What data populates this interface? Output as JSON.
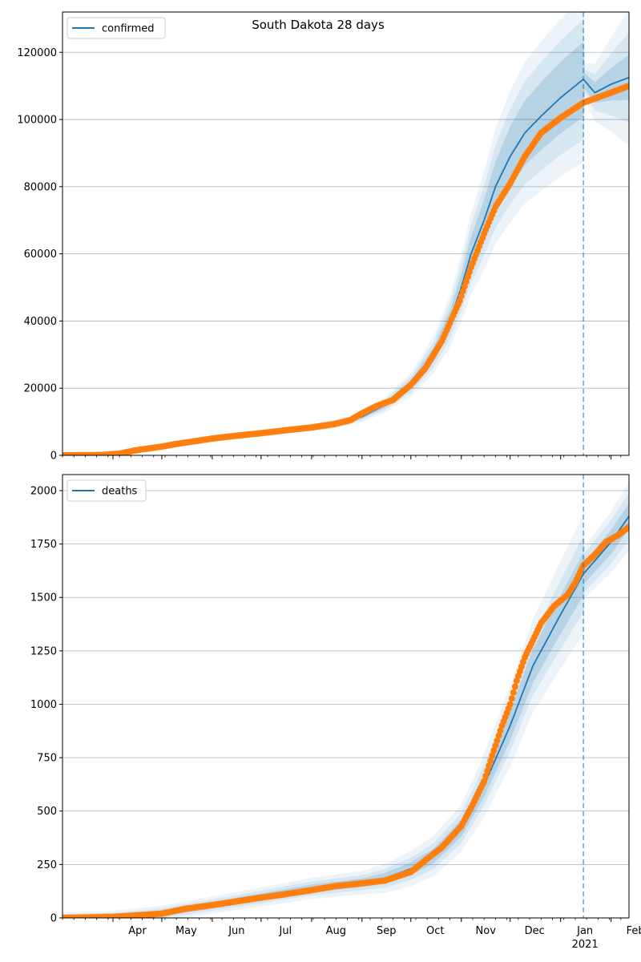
{
  "title": "South Dakota 28 days",
  "colors": {
    "model": "#1f77b4",
    "observed": "#ff7f0e",
    "band": "#1f77b4",
    "grid": "#b0b0b0",
    "forecast_line": "#1f77b4"
  },
  "x_axis": {
    "range": [
      "2020-03-01",
      "2021-02-12"
    ],
    "tick_labels": [
      {
        "date": "2020-04-01",
        "label": "Apr"
      },
      {
        "date": "2020-05-01",
        "label": "May"
      },
      {
        "date": "2020-06-01",
        "label": "Jun"
      },
      {
        "date": "2020-07-01",
        "label": "Jul"
      },
      {
        "date": "2020-08-01",
        "label": "Aug"
      },
      {
        "date": "2020-09-01",
        "label": "Sep"
      },
      {
        "date": "2020-10-01",
        "label": "Oct"
      },
      {
        "date": "2020-11-01",
        "label": "Nov"
      },
      {
        "date": "2020-12-01",
        "label": "Dec"
      },
      {
        "date": "2021-01-01",
        "label": "Jan"
      },
      {
        "date": "2021-02-01",
        "label": "Feb"
      }
    ],
    "year_label": {
      "date": "2021-01-01",
      "label": "2021"
    }
  },
  "chart_data": [
    {
      "type": "line",
      "name": "confirmed",
      "legend": {
        "label": "confirmed",
        "placement": "top-left"
      },
      "ylim": [
        0,
        132000
      ],
      "yticks": [
        0,
        20000,
        40000,
        60000,
        80000,
        100000,
        120000
      ],
      "ytick_labels": [
        "0",
        "20000",
        "40000",
        "60000",
        "80000",
        "100000",
        "120000"
      ],
      "grid": "y",
      "forecast_date": "2021-01-15",
      "model_points": [
        [
          "2020-03-01",
          0
        ],
        [
          "2020-03-20",
          300
        ],
        [
          "2020-04-01",
          800
        ],
        [
          "2020-04-15",
          1600
        ],
        [
          "2020-05-01",
          2800
        ],
        [
          "2020-05-15",
          3900
        ],
        [
          "2020-06-01",
          5000
        ],
        [
          "2020-06-15",
          5800
        ],
        [
          "2020-07-01",
          6600
        ],
        [
          "2020-07-15",
          7400
        ],
        [
          "2020-08-01",
          8300
        ],
        [
          "2020-08-15",
          9300
        ],
        [
          "2020-09-01",
          11500
        ],
        [
          "2020-09-15",
          15000
        ],
        [
          "2020-10-01",
          21000
        ],
        [
          "2020-10-15",
          30000
        ],
        [
          "2020-10-25",
          40000
        ],
        [
          "2020-11-01",
          50000
        ],
        [
          "2020-11-07",
          60000
        ],
        [
          "2020-11-15",
          70000
        ],
        [
          "2020-11-22",
          80000
        ],
        [
          "2020-12-01",
          89000
        ],
        [
          "2020-12-10",
          96000
        ],
        [
          "2020-12-20",
          101000
        ],
        [
          "2021-01-01",
          106500
        ],
        [
          "2021-01-15",
          112000
        ],
        [
          "2021-01-22",
          108000
        ],
        [
          "2021-02-01",
          110500
        ],
        [
          "2021-02-12",
          112500
        ]
      ],
      "band_widths": [
        [
          [
            "2020-03-01",
            0.02
          ],
          [
            "2020-09-01",
            0.05
          ],
          [
            "2020-11-01",
            0.08
          ],
          [
            "2020-12-01",
            0.1
          ],
          [
            "2021-01-15",
            0.1
          ],
          [
            "2021-01-16",
            0.02
          ],
          [
            "2021-02-12",
            0.06
          ]
        ],
        [
          [
            "2020-03-01",
            0.04
          ],
          [
            "2020-09-01",
            0.09
          ],
          [
            "2020-11-01",
            0.14
          ],
          [
            "2020-12-01",
            0.16
          ],
          [
            "2021-01-15",
            0.16
          ],
          [
            "2021-01-16",
            0.03
          ],
          [
            "2021-02-12",
            0.12
          ]
        ],
        [
          [
            "2020-03-01",
            0.07
          ],
          [
            "2020-09-01",
            0.14
          ],
          [
            "2020-11-01",
            0.2
          ],
          [
            "2020-12-01",
            0.22
          ],
          [
            "2021-01-15",
            0.22
          ],
          [
            "2021-01-16",
            0.05
          ],
          [
            "2021-02-12",
            0.18
          ]
        ]
      ],
      "observed_points": [
        [
          "2020-03-01",
          0
        ],
        [
          "2020-03-25",
          100
        ],
        [
          "2020-04-05",
          500
        ],
        [
          "2020-04-15",
          1500
        ],
        [
          "2020-04-25",
          2200
        ],
        [
          "2020-05-01",
          2600
        ],
        [
          "2020-05-10",
          3400
        ],
        [
          "2020-05-20",
          4100
        ],
        [
          "2020-06-01",
          5000
        ],
        [
          "2020-06-15",
          5800
        ],
        [
          "2020-07-01",
          6600
        ],
        [
          "2020-07-15",
          7400
        ],
        [
          "2020-08-01",
          8300
        ],
        [
          "2020-08-15",
          9300
        ],
        [
          "2020-08-25",
          10500
        ],
        [
          "2020-09-01",
          12500
        ],
        [
          "2020-09-10",
          14700
        ],
        [
          "2020-09-20",
          16500
        ],
        [
          "2020-10-01",
          21000
        ],
        [
          "2020-10-10",
          26000
        ],
        [
          "2020-10-20",
          34000
        ],
        [
          "2020-10-31",
          46000
        ],
        [
          "2020-11-07",
          56000
        ],
        [
          "2020-11-15",
          66000
        ],
        [
          "2020-11-22",
          74000
        ],
        [
          "2020-12-01",
          81000
        ],
        [
          "2020-12-10",
          89000
        ],
        [
          "2020-12-20",
          96000
        ],
        [
          "2021-01-01",
          100500
        ],
        [
          "2021-01-15",
          105000
        ],
        [
          "2021-02-01",
          108000
        ],
        [
          "2021-02-12",
          110000
        ]
      ]
    },
    {
      "type": "line",
      "name": "deaths",
      "legend": {
        "label": "deaths",
        "placement": "top-left"
      },
      "ylim": [
        0,
        2075
      ],
      "yticks": [
        0,
        250,
        500,
        750,
        1000,
        1250,
        1500,
        1750,
        2000
      ],
      "ytick_labels": [
        "0",
        "250",
        "500",
        "750",
        "1000",
        "1250",
        "1500",
        "1750",
        "2000"
      ],
      "grid": "y",
      "forecast_date": "2021-01-15",
      "model_points": [
        [
          "2020-03-01",
          0
        ],
        [
          "2020-04-01",
          3
        ],
        [
          "2020-05-01",
          22
        ],
        [
          "2020-06-01",
          60
        ],
        [
          "2020-07-01",
          98
        ],
        [
          "2020-08-01",
          138
        ],
        [
          "2020-09-01",
          165
        ],
        [
          "2020-09-15",
          185
        ],
        [
          "2020-10-01",
          230
        ],
        [
          "2020-10-15",
          290
        ],
        [
          "2020-11-01",
          420
        ],
        [
          "2020-11-15",
          620
        ],
        [
          "2020-12-01",
          900
        ],
        [
          "2020-12-15",
          1180
        ],
        [
          "2021-01-01",
          1420
        ],
        [
          "2021-01-15",
          1610
        ],
        [
          "2021-02-01",
          1760
        ],
        [
          "2021-02-12",
          1880
        ]
      ],
      "band_widths": [
        [
          [
            "2020-03-01",
            10
          ],
          [
            "2020-09-01",
            20
          ],
          [
            "2020-11-01",
            40
          ],
          [
            "2020-12-01",
            70
          ],
          [
            "2021-01-15",
            100
          ],
          [
            "2021-01-16",
            50
          ],
          [
            "2021-02-12",
            60
          ]
        ],
        [
          [
            "2020-03-01",
            18
          ],
          [
            "2020-09-01",
            35
          ],
          [
            "2020-11-01",
            70
          ],
          [
            "2020-12-01",
            120
          ],
          [
            "2021-01-15",
            180
          ],
          [
            "2021-01-16",
            90
          ],
          [
            "2021-02-12",
            110
          ]
        ],
        [
          [
            "2020-03-01",
            25
          ],
          [
            "2020-09-01",
            55
          ],
          [
            "2020-11-01",
            110
          ],
          [
            "2020-12-01",
            190
          ],
          [
            "2021-01-15",
            280
          ],
          [
            "2021-01-16",
            120
          ],
          [
            "2021-02-12",
            160
          ]
        ]
      ],
      "observed_points": [
        [
          "2020-03-01",
          0
        ],
        [
          "2020-04-01",
          5
        ],
        [
          "2020-04-10",
          9
        ],
        [
          "2020-05-01",
          20
        ],
        [
          "2020-05-15",
          42
        ],
        [
          "2020-06-01",
          60
        ],
        [
          "2020-06-15",
          76
        ],
        [
          "2020-07-01",
          95
        ],
        [
          "2020-07-15",
          110
        ],
        [
          "2020-08-01",
          130
        ],
        [
          "2020-08-15",
          148
        ],
        [
          "2020-09-01",
          162
        ],
        [
          "2020-09-15",
          175
        ],
        [
          "2020-10-01",
          215
        ],
        [
          "2020-10-10",
          270
        ],
        [
          "2020-10-20",
          330
        ],
        [
          "2020-11-01",
          430
        ],
        [
          "2020-11-08",
          530
        ],
        [
          "2020-11-15",
          640
        ],
        [
          "2020-11-20",
          760
        ],
        [
          "2020-11-26",
          900
        ],
        [
          "2020-12-01",
          1000
        ],
        [
          "2020-12-05",
          1110
        ],
        [
          "2020-12-10",
          1220
        ],
        [
          "2020-12-15",
          1300
        ],
        [
          "2020-12-20",
          1380
        ],
        [
          "2020-12-28",
          1460
        ],
        [
          "2021-01-05",
          1510
        ],
        [
          "2021-01-10",
          1570
        ],
        [
          "2021-01-15",
          1650
        ],
        [
          "2021-01-22",
          1700
        ],
        [
          "2021-01-29",
          1760
        ],
        [
          "2021-02-05",
          1790
        ],
        [
          "2021-02-12",
          1830
        ]
      ]
    }
  ]
}
